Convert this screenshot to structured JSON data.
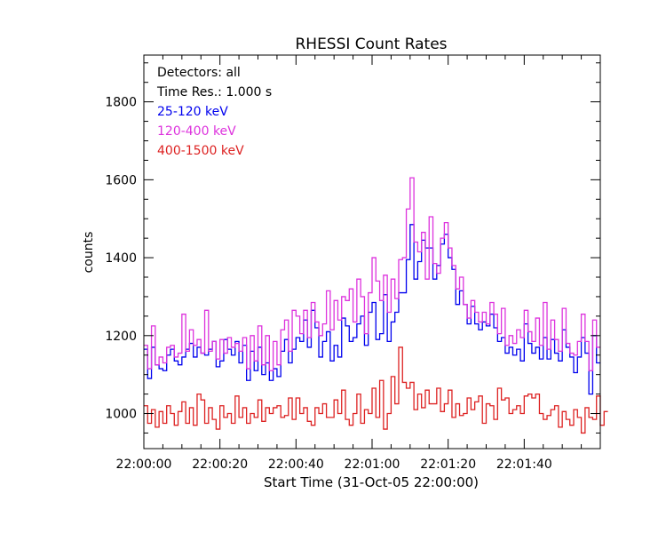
{
  "chart_data": {
    "type": "line",
    "title": "RHESSI Count Rates",
    "xlabel": "Start Time (31-Oct-05 22:00:00)",
    "ylabel": "counts",
    "xlim_seconds": [
      0,
      120
    ],
    "ylim": [
      910,
      1920
    ],
    "x_tick_labels": [
      "22:00:00",
      "22:00:20",
      "22:00:40",
      "22:01:00",
      "22:01:20",
      "22:01:40"
    ],
    "y_tick_labels": [
      "1000",
      "1200",
      "1400",
      "1600",
      "1800"
    ],
    "y_ticks": [
      1000,
      1200,
      1400,
      1600,
      1800
    ],
    "annotations": [
      "Detectors: all",
      "Time Res.: 1.000 s"
    ],
    "step_seconds": 1,
    "series": [
      {
        "name": "25-120 keV",
        "color": "#0000ee",
        "values": [
          1165,
          1090,
          1170,
          1125,
          1115,
          1110,
          1150,
          1165,
          1135,
          1125,
          1145,
          1165,
          1180,
          1145,
          1170,
          1155,
          1150,
          1165,
          1185,
          1120,
          1135,
          1190,
          1165,
          1150,
          1185,
          1130,
          1175,
          1085,
          1160,
          1110,
          1170,
          1100,
          1130,
          1085,
          1115,
          1095,
          1160,
          1190,
          1130,
          1165,
          1195,
          1185,
          1240,
          1170,
          1265,
          1220,
          1145,
          1185,
          1210,
          1135,
          1175,
          1145,
          1245,
          1225,
          1185,
          1195,
          1230,
          1250,
          1175,
          1260,
          1285,
          1190,
          1205,
          1305,
          1185,
          1235,
          1260,
          1310,
          1310,
          1395,
          1485,
          1345,
          1390,
          1445,
          1425,
          1425,
          1345,
          1380,
          1435,
          1460,
          1400,
          1370,
          1280,
          1315,
          1280,
          1230,
          1275,
          1230,
          1215,
          1235,
          1225,
          1255,
          1220,
          1185,
          1195,
          1155,
          1170,
          1150,
          1165,
          1135,
          1230,
          1180,
          1155,
          1170,
          1140,
          1195,
          1140,
          1190,
          1155,
          1135,
          1215,
          1170,
          1145,
          1105,
          1145,
          1195,
          1155,
          1050,
          1200,
          1130
        ]
      },
      {
        "name": "120-400 keV",
        "color": "#dd33dd",
        "values": [
          1175,
          1115,
          1225,
          1125,
          1145,
          1130,
          1170,
          1175,
          1145,
          1155,
          1255,
          1160,
          1215,
          1175,
          1190,
          1155,
          1265,
          1160,
          1185,
          1140,
          1190,
          1155,
          1195,
          1170,
          1180,
          1160,
          1195,
          1115,
          1200,
          1135,
          1225,
          1125,
          1200,
          1110,
          1185,
          1125,
          1215,
          1240,
          1160,
          1265,
          1250,
          1205,
          1265,
          1195,
          1285,
          1235,
          1200,
          1230,
          1315,
          1215,
          1290,
          1240,
          1300,
          1290,
          1320,
          1235,
          1345,
          1300,
          1205,
          1310,
          1400,
          1340,
          1290,
          1355,
          1260,
          1345,
          1295,
          1395,
          1400,
          1525,
          1605,
          1440,
          1415,
          1465,
          1345,
          1505,
          1385,
          1360,
          1450,
          1490,
          1425,
          1380,
          1320,
          1350,
          1280,
          1245,
          1290,
          1260,
          1235,
          1260,
          1230,
          1285,
          1255,
          1205,
          1270,
          1175,
          1200,
          1180,
          1215,
          1195,
          1265,
          1210,
          1185,
          1245,
          1175,
          1285,
          1165,
          1240,
          1190,
          1160,
          1270,
          1180,
          1155,
          1150,
          1185,
          1255,
          1185,
          1110,
          1240,
          1170
        ]
      },
      {
        "name": "400-1500 keV",
        "color": "#dd2222",
        "values": [
          1020,
          975,
          1010,
          965,
          1005,
          975,
          1020,
          1000,
          970,
          1005,
          1030,
          975,
          1015,
          970,
          1050,
          1035,
          975,
          1015,
          985,
          960,
          1020,
          990,
          1000,
          975,
          1045,
          990,
          1015,
          975,
          1000,
          990,
          1035,
          980,
          1015,
          1000,
          1015,
          1020,
          990,
          995,
          1040,
          985,
          1040,
          1000,
          1015,
          980,
          970,
          1015,
          1000,
          1025,
          990,
          990,
          1035,
          1000,
          1060,
          985,
          970,
          1000,
          1050,
          975,
          1010,
          1000,
          1065,
          990,
          1085,
          960,
          1000,
          1095,
          1025,
          1170,
          1080,
          1065,
          1080,
          1010,
          1050,
          1015,
          1060,
          1025,
          1025,
          1065,
          1005,
          1025,
          1060,
          990,
          1025,
          995,
          1000,
          1040,
          1010,
          1030,
          1045,
          975,
          1025,
          1020,
          985,
          1065,
          1035,
          1040,
          1000,
          1010,
          1020,
          1000,
          1045,
          1050,
          1040,
          1050,
          1000,
          985,
          995,
          1010,
          1020,
          965,
          1005,
          985,
          970,
          1010,
          990,
          950,
          1015,
          990,
          985,
          1045,
          970,
          1005
        ]
      }
    ]
  }
}
